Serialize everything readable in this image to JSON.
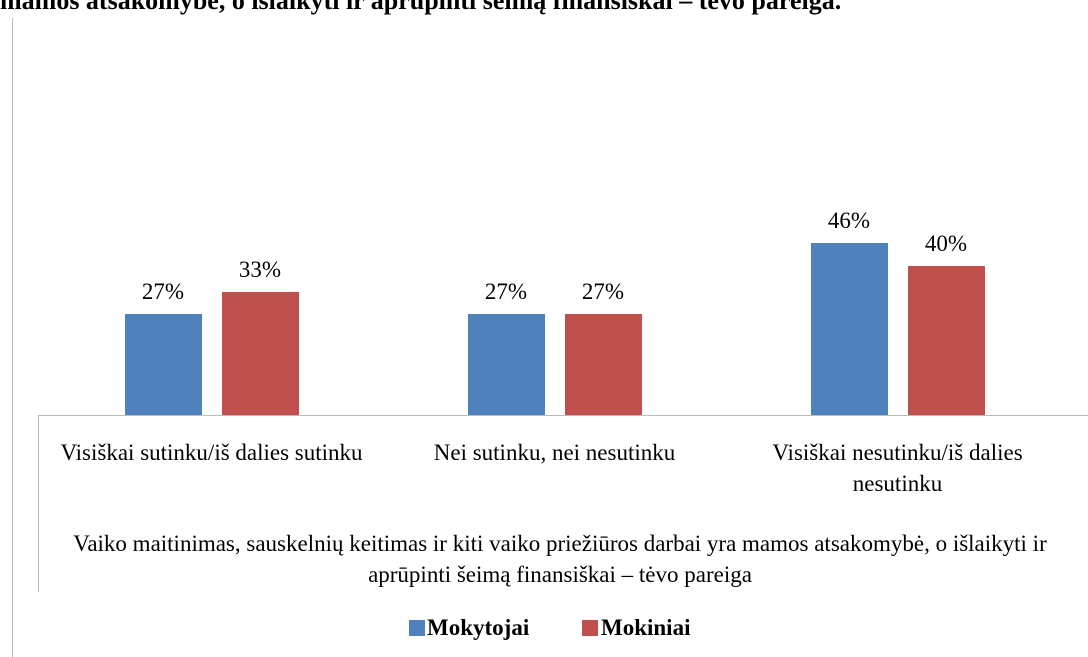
{
  "chart_data": {
    "type": "bar",
    "title": "mamos atsakomybė, o išlaikyti ir aprūpinti šeimą finansiškai – tėvo pareiga.",
    "x_label": "Vaiko maitinimas, sauskelnių keitimas ir kiti vaiko priežiūros darbai yra mamos atsakomybė, o išlaikyti ir aprūpinti šeimą finansiškai – tėvo pareiga",
    "categories": [
      "Visiškai sutinku/iš dalies sutinku",
      "Nei sutinku, nei nesutinku",
      "Visiškai nesutinku/iš dalies nesutinku"
    ],
    "series": [
      {
        "name": "Mokytojai",
        "color": "#4f81bd",
        "values": [
          27,
          27,
          46
        ],
        "value_labels": [
          "27%",
          "27%",
          "46%"
        ]
      },
      {
        "name": "Mokiniai",
        "color": "#c0504d",
        "values": [
          33,
          27,
          40
        ],
        "value_labels": [
          "33%",
          "27%",
          "40%"
        ]
      }
    ],
    "legend": "bottom"
  }
}
